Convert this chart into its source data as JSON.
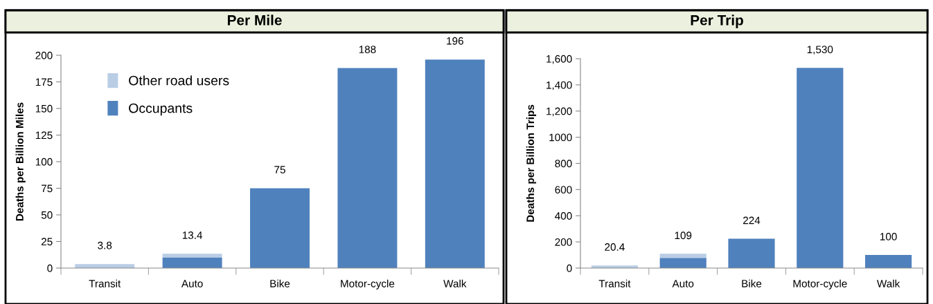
{
  "chart_data": [
    {
      "type": "bar",
      "title": "Per Mile",
      "ylabel": "Deaths per Billion Miles",
      "stacked": true,
      "categories": [
        "Transit",
        "Auto",
        "Bike",
        "Motor-cycle",
        "Walk"
      ],
      "series": [
        {
          "name": "Occupants",
          "color": "#4f81bd",
          "values": [
            0,
            10,
            75,
            188,
            196
          ]
        },
        {
          "name": "Other road users",
          "color": "#b9cde5",
          "values": [
            3.8,
            3.4,
            0,
            0,
            0
          ]
        }
      ],
      "totals": [
        "3.8",
        "13.4",
        "75",
        "188",
        "196"
      ],
      "ylim": [
        0,
        200
      ],
      "yticks": [
        0,
        25,
        50,
        75,
        100,
        125,
        150,
        175,
        200
      ],
      "legend": "top left",
      "grid": false
    },
    {
      "type": "bar",
      "title": "Per Trip",
      "ylabel": "Deaths per Billion Trips",
      "stacked": true,
      "categories": [
        "Transit",
        "Auto",
        "Bike",
        "Motor-cycle",
        "Walk"
      ],
      "series": [
        {
          "color": "#4f81bd",
          "values": [
            0,
            78,
            224,
            1530,
            100
          ]
        },
        {
          "color": "#b9cde5",
          "values": [
            20.4,
            31,
            0,
            0,
            0
          ]
        }
      ],
      "totals": [
        "20.4",
        "109",
        "224",
        "1,530",
        "100"
      ],
      "ylim": [
        0,
        1600
      ],
      "yticks": [
        0,
        200,
        400,
        600,
        800,
        1000,
        {
          "value": 1200,
          "label": "1,200"
        },
        {
          "value": 1400,
          "label": "1,400"
        },
        {
          "value": 1600,
          "label": "1,600"
        }
      ],
      "grid": false
    }
  ]
}
